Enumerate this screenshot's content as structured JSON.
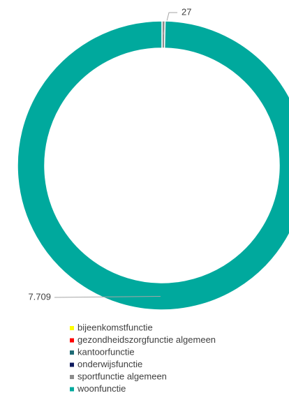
{
  "chart_data": {
    "type": "pie",
    "categories": [
      "bijeenkomstfunctie",
      "gezondheidszorgfunctie algemeen",
      "kantoorfunctie",
      "onderwijsfunctie",
      "sportfunctie algemeen",
      "woonfunctie"
    ],
    "values": [
      0,
      0,
      0,
      0,
      27,
      7709
    ],
    "value_labels": [
      null,
      null,
      null,
      null,
      "27",
      "7.709"
    ],
    "colors": [
      "#ffff00",
      "#ff0000",
      "#1f6b75",
      "#0d1a5e",
      "#8c8c8c",
      "#00a99d"
    ],
    "donut": true
  }
}
